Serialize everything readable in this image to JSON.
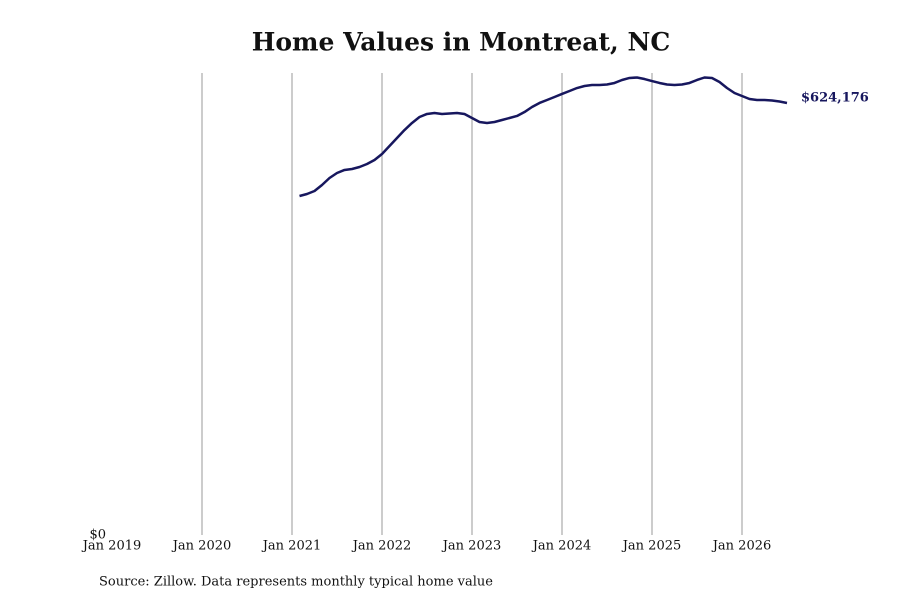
{
  "chart_data": {
    "type": "line",
    "title": "Home Values in Montreat, NC",
    "source": "Source: Zillow. Data represents monthly typical home value",
    "color": "#17175e",
    "x": [
      "2021-02",
      "2021-03",
      "2021-04",
      "2021-05",
      "2021-06",
      "2021-07",
      "2021-08",
      "2021-09",
      "2021-10",
      "2021-11",
      "2021-12",
      "2022-01",
      "2022-02",
      "2022-03",
      "2022-04",
      "2022-05",
      "2022-06",
      "2022-07",
      "2022-08",
      "2022-09",
      "2022-10",
      "2022-11",
      "2022-12",
      "2023-01",
      "2023-02",
      "2023-03",
      "2023-04",
      "2023-05",
      "2023-06",
      "2023-07",
      "2023-08",
      "2023-09",
      "2023-10",
      "2023-11",
      "2023-12",
      "2024-01",
      "2024-02",
      "2024-03",
      "2024-04",
      "2024-05",
      "2024-06",
      "2024-07",
      "2024-08",
      "2024-09",
      "2024-10",
      "2024-11",
      "2024-12",
      "2025-01",
      "2025-02",
      "2025-03",
      "2025-04",
      "2025-05",
      "2025-06",
      "2025-07",
      "2025-08",
      "2025-09",
      "2025-10",
      "2025-11",
      "2025-12",
      "2026-01",
      "2026-02",
      "2026-03",
      "2026-04",
      "2026-05",
      "2026-06",
      "2026-07"
    ],
    "values": [
      489800,
      492700,
      497000,
      505700,
      515800,
      523000,
      527400,
      528800,
      531700,
      536000,
      541800,
      550500,
      562000,
      573600,
      585100,
      595300,
      603900,
      608300,
      609700,
      608300,
      609000,
      609700,
      608300,
      602500,
      596700,
      595300,
      596700,
      599600,
      602500,
      605400,
      611100,
      618400,
      624200,
      628500,
      632800,
      637200,
      641500,
      645800,
      648700,
      650200,
      650200,
      650900,
      653100,
      657400,
      660300,
      661000,
      658800,
      655900,
      653100,
      650900,
      650200,
      650900,
      653100,
      657400,
      661000,
      660300,
      654500,
      645800,
      638600,
      634300,
      629900,
      628500,
      628500,
      627800,
      626300,
      624176
    ],
    "value_labels": [
      null,
      null,
      null,
      null,
      null,
      null,
      null,
      null,
      null,
      null,
      null,
      null,
      null,
      null,
      null,
      null,
      null,
      null,
      null,
      null,
      null,
      null,
      null,
      null,
      null,
      null,
      null,
      null,
      null,
      null,
      null,
      null,
      null,
      null,
      null,
      null,
      null,
      null,
      null,
      null,
      null,
      null,
      null,
      null,
      null,
      null,
      null,
      null,
      null,
      null,
      null,
      null,
      null,
      null,
      null,
      null,
      null,
      null,
      null,
      null,
      null,
      null,
      null,
      null,
      null,
      "$624,176"
    ],
    "xlim": [
      "2019-01",
      "2026-07"
    ],
    "xticks": [
      {
        "value": "2019-01",
        "label": "Jan 2019"
      },
      {
        "value": "2020-01",
        "label": "Jan 2020"
      },
      {
        "value": "2021-01",
        "label": "Jan 2021"
      },
      {
        "value": "2022-01",
        "label": "Jan 2022"
      },
      {
        "value": "2023-01",
        "label": "Jan 2023"
      },
      {
        "value": "2024-01",
        "label": "Jan 2024"
      },
      {
        "value": "2025-01",
        "label": "Jan 2025"
      },
      {
        "value": "2026-01",
        "label": "Jan 2026"
      }
    ],
    "ylim": [
      0,
      667500
    ],
    "yticks": [
      {
        "value": 0,
        "label": "$0"
      }
    ],
    "grid": true
  }
}
